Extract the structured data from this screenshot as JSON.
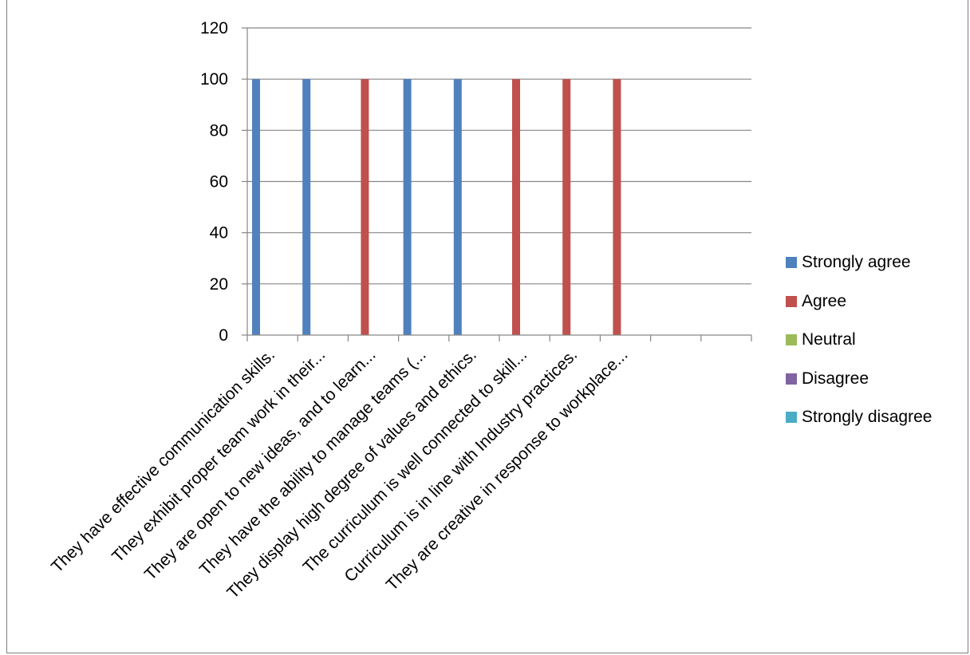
{
  "chart_data": {
    "type": "bar",
    "categories": [
      "They have effective communication skills.",
      "They exhibit proper team work in their...",
      "They are open to new ideas, and to learn...",
      "They have the ability to manage teams (...",
      "They display high degree of values and ethics.",
      "The curriculum is well connected to skill...",
      "Curriculum is in line with Industry practices.",
      "They are creative in response to workplace...",
      "",
      ""
    ],
    "series": [
      {
        "name": "Strongly agree",
        "color": "#4f81bd",
        "values": [
          100,
          100,
          0,
          100,
          100,
          0,
          0,
          0,
          0,
          0
        ]
      },
      {
        "name": "Agree",
        "color": "#c0504d",
        "values": [
          0,
          0,
          100,
          0,
          0,
          100,
          100,
          100,
          0,
          0
        ]
      },
      {
        "name": "Neutral",
        "color": "#9bbb59",
        "values": [
          0,
          0,
          0,
          0,
          0,
          0,
          0,
          0,
          0,
          0
        ]
      },
      {
        "name": "Disagree",
        "color": "#8064a2",
        "values": [
          0,
          0,
          0,
          0,
          0,
          0,
          0,
          0,
          0,
          0
        ]
      },
      {
        "name": "Strongly disagree",
        "color": "#4bacc6",
        "values": [
          0,
          0,
          0,
          0,
          0,
          0,
          0,
          0,
          0,
          0
        ]
      }
    ],
    "ylim": [
      0,
      120
    ],
    "yticks": [
      "0",
      "20",
      "40",
      "60",
      "80",
      "100",
      "120"
    ],
    "grid": true,
    "legend": "right"
  }
}
